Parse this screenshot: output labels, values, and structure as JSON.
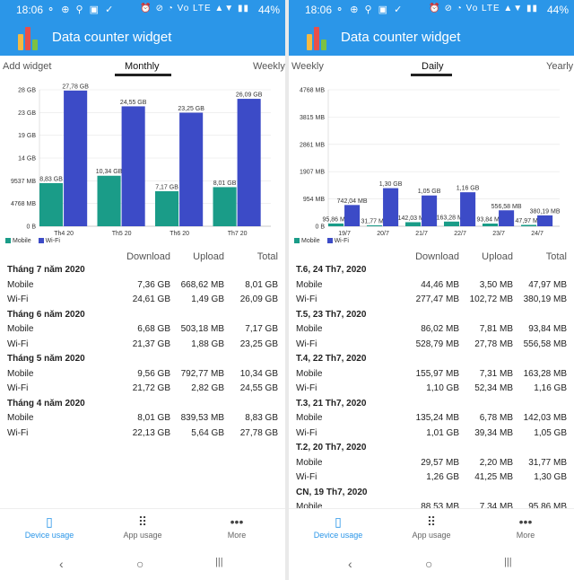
{
  "status": {
    "time": "18:06",
    "left_icons": "⚬ ⊕ ⚲ ▣ ✓",
    "right_icons": "⏰ ⊘ ◔ Vo LTE ▲▼ ▮▮",
    "battery": "44%"
  },
  "app": {
    "title": "Data counter widget",
    "logo_colors": [
      "#f4b942",
      "#e8504a",
      "#7dc142"
    ]
  },
  "colors": {
    "mobile": "#1a9c88",
    "wifi": "#3c4bc7",
    "accent": "#2b96e8"
  },
  "left": {
    "tabs": {
      "prev": "Add widget",
      "active": "Monthly",
      "next": "Weekly"
    },
    "legend": {
      "mobile": "Mobile",
      "wifi": "Wi-Fi"
    },
    "headers": {
      "download": "Download",
      "upload": "Upload",
      "total": "Total"
    },
    "sections": [
      {
        "title": "Tháng 7 năm 2020",
        "rows": [
          {
            "label": "Mobile",
            "download": "7,36 GB",
            "upload": "668,62 MB",
            "total": "8,01 GB"
          },
          {
            "label": "Wi-Fi",
            "download": "24,61 GB",
            "upload": "1,49 GB",
            "total": "26,09 GB"
          }
        ]
      },
      {
        "title": "Tháng 6 năm 2020",
        "rows": [
          {
            "label": "Mobile",
            "download": "6,68 GB",
            "upload": "503,18 MB",
            "total": "7,17 GB"
          },
          {
            "label": "Wi-Fi",
            "download": "21,37 GB",
            "upload": "1,88 GB",
            "total": "23,25 GB"
          }
        ]
      },
      {
        "title": "Tháng 5 năm 2020",
        "rows": [
          {
            "label": "Mobile",
            "download": "9,56 GB",
            "upload": "792,77 MB",
            "total": "10,34 GB"
          },
          {
            "label": "Wi-Fi",
            "download": "21,72 GB",
            "upload": "2,82 GB",
            "total": "24,55 GB"
          }
        ]
      },
      {
        "title": "Tháng 4 năm 2020",
        "rows": [
          {
            "label": "Mobile",
            "download": "8,01 GB",
            "upload": "839,53 MB",
            "total": "8,83 GB"
          },
          {
            "label": "Wi-Fi",
            "download": "22,13 GB",
            "upload": "5,64 GB",
            "total": "27,78 GB"
          }
        ]
      }
    ]
  },
  "right": {
    "tabs": {
      "prev": "Weekly",
      "active": "Daily",
      "next": "Yearly"
    },
    "legend": {
      "mobile": "Mobile",
      "wifi": "Wi-Fi"
    },
    "headers": {
      "download": "Download",
      "upload": "Upload",
      "total": "Total"
    },
    "sections": [
      {
        "title": "T.6, 24 Th7, 2020",
        "rows": [
          {
            "label": "Mobile",
            "download": "44,46 MB",
            "upload": "3,50 MB",
            "total": "47,97 MB"
          },
          {
            "label": "Wi-Fi",
            "download": "277,47 MB",
            "upload": "102,72 MB",
            "total": "380,19 MB"
          }
        ]
      },
      {
        "title": "T.5, 23 Th7, 2020",
        "rows": [
          {
            "label": "Mobile",
            "download": "86,02 MB",
            "upload": "7,81 MB",
            "total": "93,84 MB"
          },
          {
            "label": "Wi-Fi",
            "download": "528,79 MB",
            "upload": "27,78 MB",
            "total": "556,58 MB"
          }
        ]
      },
      {
        "title": "T.4, 22 Th7, 2020",
        "rows": [
          {
            "label": "Mobile",
            "download": "155,97 MB",
            "upload": "7,31 MB",
            "total": "163,28 MB"
          },
          {
            "label": "Wi-Fi",
            "download": "1,10 GB",
            "upload": "52,34 MB",
            "total": "1,16 GB"
          }
        ]
      },
      {
        "title": "T.3, 21 Th7, 2020",
        "rows": [
          {
            "label": "Mobile",
            "download": "135,24 MB",
            "upload": "6,78 MB",
            "total": "142,03 MB"
          },
          {
            "label": "Wi-Fi",
            "download": "1,01 GB",
            "upload": "39,34 MB",
            "total": "1,05 GB"
          }
        ]
      },
      {
        "title": "T.2, 20 Th7, 2020",
        "rows": [
          {
            "label": "Mobile",
            "download": "29,57 MB",
            "upload": "2,20 MB",
            "total": "31,77 MB"
          },
          {
            "label": "Wi-Fi",
            "download": "1,26 GB",
            "upload": "41,25 MB",
            "total": "1,30 GB"
          }
        ]
      },
      {
        "title": "CN, 19 Th7, 2020",
        "rows": [
          {
            "label": "Mobile",
            "download": "88,53 MB",
            "upload": "7,34 MB",
            "total": "95,86 MB"
          }
        ]
      }
    ]
  },
  "nav": {
    "device": "Device usage",
    "app": "App usage",
    "more": "More"
  },
  "sysnav": {
    "back": "‹",
    "home": "○",
    "recents": "|||"
  },
  "chart_data": [
    {
      "type": "bar",
      "title": "",
      "categories": [
        "Th4 20",
        "Th5 20",
        "Th6 20",
        "Th7 20"
      ],
      "series": [
        {
          "name": "Mobile",
          "values": [
            8.83,
            10.34,
            7.17,
            8.01
          ],
          "labels": [
            "8,83 GB",
            "10,34 GB",
            "7,17 GB",
            "8,01 GB"
          ]
        },
        {
          "name": "Wi-Fi",
          "values": [
            27.78,
            24.55,
            23.25,
            26.09
          ],
          "labels": [
            "27,78 GB",
            "24,55 GB",
            "23,25 GB",
            "26,09 GB"
          ]
        }
      ],
      "yticks": [
        0,
        4.656,
        9.312,
        13.97,
        18.62,
        23.28,
        27.94
      ],
      "ytick_labels": [
        "0 B",
        "4768 MB",
        "9537 MB",
        "14 GB",
        "19 GB",
        "23 GB",
        "28 GB"
      ],
      "ylim": [
        0,
        27.94
      ],
      "legend": "bottom-left"
    },
    {
      "type": "bar",
      "title": "",
      "categories": [
        "19/7",
        "20/7",
        "21/7",
        "22/7",
        "23/7",
        "24/7"
      ],
      "series": [
        {
          "name": "Mobile",
          "values": [
            95.86,
            31.77,
            142.03,
            163.28,
            93.84,
            47.97
          ],
          "labels": [
            "95,86 MB",
            "31,77 MB",
            "142,03 MB",
            "163,28 MB",
            "93,84 MB",
            "47,97 MB"
          ]
        },
        {
          "name": "Wi-Fi",
          "values": [
            742.04,
            1331.2,
            1075.2,
            1187.84,
            556.58,
            380.19
          ],
          "labels": [
            "742,04 MB",
            "1,30 GB",
            "1,05 GB",
            "1,16 GB",
            "556,58 MB",
            "380,19 MB"
          ]
        }
      ],
      "yticks": [
        0,
        954,
        1907,
        2861,
        3815,
        4768
      ],
      "ytick_labels": [
        "0 B",
        "954 MB",
        "1907 MB",
        "2861 MB",
        "3815 MB",
        "4768 MB"
      ],
      "ylim": [
        0,
        4768
      ],
      "legend": "bottom-left"
    }
  ]
}
